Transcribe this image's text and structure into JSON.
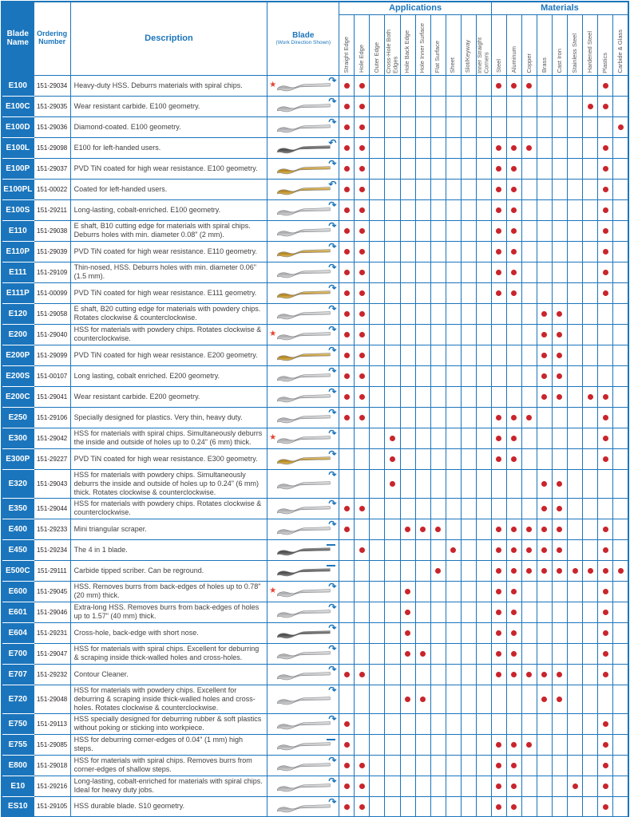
{
  "colors": {
    "blue": "#1b75bc",
    "dot_red": "#c9252c",
    "star_red": "#e8412f",
    "text_dark": "#414042",
    "label_gray": "#58595b"
  },
  "icons": {
    "star": "★",
    "arrow_cw": "↷",
    "arrow_ccw": "↶"
  },
  "header": {
    "blade_name": "Blade Name",
    "ordering_number": "Ordering Number",
    "description": "Description",
    "blade": "Blade",
    "blade_sub": "(Work Direction Shown)",
    "applications": "Applications",
    "materials": "Materials",
    "application_columns": [
      "Straight Edge",
      "Hole Edge",
      "Outer Edge",
      "Cross-Hole Both Edges",
      "Hole Back Edge",
      "Hole Inner Surface",
      "Flat Surface",
      "Sheet",
      "Slot/Keyway",
      "Inner Straight Corners"
    ],
    "material_columns": [
      "Steel",
      "Aluminum",
      "Copper",
      "Brass",
      "Cast Iron",
      "Stainless Steel",
      "Hardened Steel",
      "Plastics",
      "Carbide & Glass"
    ]
  },
  "rows": [
    {
      "name": "E100",
      "order": "151-29034",
      "description": "Heavy-duty HSS. Deburrs materials with spiral chips.",
      "blade": "silver",
      "star": true,
      "dir": "cw",
      "apps": [
        0,
        1
      ],
      "mats": [
        0,
        1,
        2,
        7
      ]
    },
    {
      "name": "E100C",
      "order": "151-29035",
      "description": "Wear resistant carbide. E100 geometry.",
      "blade": "silver",
      "star": false,
      "dir": "cw",
      "apps": [
        0,
        1
      ],
      "mats": [
        6,
        7
      ]
    },
    {
      "name": "E100D",
      "order": "151-29036",
      "description": "Diamond-coated. E100 geometry.",
      "blade": "silver",
      "star": false,
      "dir": "cw",
      "apps": [
        0,
        1
      ],
      "mats": [
        8
      ]
    },
    {
      "name": "E100L",
      "order": "151-29098",
      "description": "E100 for left-handed users.",
      "blade": "dark",
      "star": false,
      "dir": "ccw",
      "apps": [
        0,
        1
      ],
      "mats": [
        0,
        1,
        2,
        7
      ]
    },
    {
      "name": "E100P",
      "order": "151-29037",
      "description": "PVD TiN coated for high wear resistance. E100 geometry.",
      "blade": "gold",
      "star": false,
      "dir": "cw",
      "apps": [
        0,
        1
      ],
      "mats": [
        0,
        1,
        7
      ]
    },
    {
      "name": "E100PL",
      "order": "151-00022",
      "description": "Coated for left-handed users.",
      "blade": "gold",
      "star": false,
      "dir": "ccw",
      "apps": [
        0,
        1
      ],
      "mats": [
        0,
        1,
        7
      ]
    },
    {
      "name": "E100S",
      "order": "151-29211",
      "description": "Long-lasting, cobalt-enriched. E100 geometry.",
      "blade": "silver",
      "star": false,
      "dir": "cw",
      "apps": [
        0,
        1
      ],
      "mats": [
        0,
        1,
        7
      ]
    },
    {
      "name": "E110",
      "order": "151-29038",
      "description": "E shaft, B10 cutting edge for materials with spiral chips. Deburrs holes with min. diameter 0.08\" (2 mm).",
      "blade": "silver",
      "star": false,
      "dir": "cw",
      "apps": [
        0,
        1
      ],
      "mats": [
        0,
        1,
        7
      ]
    },
    {
      "name": "E110P",
      "order": "151-29039",
      "description": "PVD TiN coated for high wear resistance. E110 geometry.",
      "blade": "gold",
      "star": false,
      "dir": "cw",
      "apps": [
        0,
        1
      ],
      "mats": [
        0,
        1,
        7
      ]
    },
    {
      "name": "E111",
      "order": "151-29109",
      "description": "Thin-nosed, HSS. Deburrs holes with min. diameter 0.06\" (1.5 mm).",
      "blade": "silver",
      "star": false,
      "dir": "cw",
      "apps": [
        0,
        1
      ],
      "mats": [
        0,
        1,
        7
      ]
    },
    {
      "name": "E111P",
      "order": "151-00099",
      "description": "PVD TiN coated for high wear resistance. E111 geometry.",
      "blade": "gold",
      "star": false,
      "dir": "cw",
      "apps": [
        0,
        1
      ],
      "mats": [
        0,
        1,
        7
      ]
    },
    {
      "name": "E120",
      "order": "151-29058",
      "description": "E shaft, B20 cutting edge for materials with powdery chips. Rotates clockwise & counterclockwise.",
      "blade": "silver",
      "star": false,
      "dir": "cw",
      "apps": [
        0,
        1
      ],
      "mats": [
        3,
        4
      ]
    },
    {
      "name": "E200",
      "order": "151-29040",
      "description": "HSS for materials with powdery chips. Rotates clockwise & counterclockwise.",
      "blade": "silver",
      "star": true,
      "dir": "cw",
      "apps": [
        0,
        1
      ],
      "mats": [
        3,
        4
      ]
    },
    {
      "name": "E200P",
      "order": "151-29099",
      "description": "PVD TiN coated for high wear resistance. E200 geometry.",
      "blade": "gold",
      "star": false,
      "dir": "cw",
      "apps": [
        0,
        1
      ],
      "mats": [
        3,
        4
      ]
    },
    {
      "name": "E200S",
      "order": "151-00107",
      "description": "Long lasting, cobalt enriched. E200 geometry.",
      "blade": "silver",
      "star": false,
      "dir": "cw",
      "apps": [
        0,
        1
      ],
      "mats": [
        3,
        4
      ]
    },
    {
      "name": "E200C",
      "order": "151-29041",
      "description": "Wear resistant carbide. E200 geometry.",
      "blade": "silver",
      "star": false,
      "dir": "cw",
      "apps": [
        0,
        1
      ],
      "mats": [
        3,
        4,
        6,
        7
      ]
    },
    {
      "name": "E250",
      "order": "151-29106",
      "description": "Specially designed for plastics. Very thin, heavy duty.",
      "blade": "silver",
      "star": false,
      "dir": "cw",
      "apps": [
        0,
        1
      ],
      "mats": [
        0,
        1,
        2,
        7
      ]
    },
    {
      "name": "E300",
      "order": "151-29042",
      "description": "HSS for materials with spiral chips. Simultaneously deburrs the inside and outside of holes up to 0.24\" (6 mm) thick.",
      "blade": "silver",
      "star": true,
      "dir": "cw",
      "apps": [
        3
      ],
      "mats": [
        0,
        1,
        7
      ]
    },
    {
      "name": "E300P",
      "order": "151-29227",
      "description": "PVD TiN coated for high wear resistance. E300 geometry.",
      "blade": "gold",
      "star": false,
      "dir": "cw",
      "apps": [
        3
      ],
      "mats": [
        0,
        1,
        7
      ]
    },
    {
      "name": "E320",
      "order": "151-29043",
      "description": "HSS for materials with powdery chips. Simultaneously deburrs the inside and outside of holes up to 0.24\" (6 mm) thick. Rotates clockwise & counterclockwise.",
      "blade": "silver",
      "star": false,
      "dir": "cw",
      "apps": [
        3
      ],
      "mats": [
        3,
        4
      ]
    },
    {
      "name": "E350",
      "order": "151-29044",
      "description": "HSS for materials with powdery chips. Rotates clockwise & counterclockwise.",
      "blade": "silver",
      "star": false,
      "dir": "cw",
      "apps": [
        0,
        1
      ],
      "mats": [
        3,
        4
      ]
    },
    {
      "name": "E400",
      "order": "151-29233",
      "description": "Mini triangular scraper.",
      "blade": "silver",
      "star": false,
      "dir": "cw",
      "apps": [
        0,
        4,
        5,
        6
      ],
      "mats": [
        0,
        1,
        2,
        3,
        4,
        7
      ]
    },
    {
      "name": "E450",
      "order": "151-29234",
      "description": "The 4 in 1 blade.",
      "blade": "dark",
      "star": false,
      "dir": "dash",
      "apps": [
        1,
        7
      ],
      "mats": [
        0,
        1,
        2,
        3,
        4,
        7
      ]
    },
    {
      "name": "E500C",
      "order": "151-29111",
      "description": "Carbide tipped scriber. Can be reground.",
      "blade": "dark",
      "star": false,
      "dir": "dash",
      "apps": [
        6
      ],
      "mats": [
        0,
        1,
        2,
        3,
        4,
        5,
        6,
        7,
        8
      ]
    },
    {
      "name": "E600",
      "order": "151-29045",
      "description": "HSS. Removes burrs from back-edges of holes up to 0.78\" (20 mm) thick.",
      "blade": "silver",
      "star": true,
      "dir": "cw",
      "apps": [
        4
      ],
      "mats": [
        0,
        1,
        7
      ]
    },
    {
      "name": "E601",
      "order": "151-29046",
      "description": "Extra-long HSS. Removes burrs from back-edges of holes up to 1.57\" (40 mm) thick.",
      "blade": "silver",
      "star": false,
      "dir": "cw",
      "apps": [
        4
      ],
      "mats": [
        0,
        1,
        7
      ]
    },
    {
      "name": "E604",
      "order": "151-29231",
      "description": "Cross-hole, back-edge with short nose.",
      "blade": "dark",
      "star": false,
      "dir": "cw",
      "apps": [
        4
      ],
      "mats": [
        0,
        1,
        7
      ]
    },
    {
      "name": "E700",
      "order": "151-29047",
      "description": "HSS for materials with spiral chips. Excellent for deburring & scraping inside thick-walled holes and cross-holes.",
      "blade": "silver",
      "star": false,
      "dir": "cw",
      "apps": [
        4,
        5
      ],
      "mats": [
        0,
        1,
        7
      ]
    },
    {
      "name": "E707",
      "order": "151-29232",
      "description": "Contour Cleaner.",
      "blade": "silver",
      "star": false,
      "dir": "cw",
      "apps": [
        0,
        1
      ],
      "mats": [
        0,
        1,
        2,
        3,
        4,
        7
      ]
    },
    {
      "name": "E720",
      "order": "151-29048",
      "description": "HSS for materials with powdery chips. Excellent for deburring & scraping inside thick-walled holes and cross-holes. Rotates clockwise & counterclockwise.",
      "blade": "silver",
      "star": false,
      "dir": "cw",
      "apps": [
        4,
        5
      ],
      "mats": [
        3,
        4
      ]
    },
    {
      "name": "E750",
      "order": "151-29113",
      "description": "HSS specially designed for deburring rubber & soft plastics without poking or sticking into workpiece.",
      "blade": "silver",
      "star": false,
      "dir": "cw",
      "apps": [
        0
      ],
      "mats": [
        7
      ]
    },
    {
      "name": "E755",
      "order": "151-29085",
      "description": "HSS for deburring corner-edges of 0.04\" (1 mm) high steps.",
      "blade": "silver",
      "star": false,
      "dir": "dash",
      "apps": [
        0
      ],
      "mats": [
        0,
        1,
        2,
        7
      ]
    },
    {
      "name": "E800",
      "order": "151-29018",
      "description": "HSS for materials with spiral chips. Removes burrs from corner-edges of shallow steps.",
      "blade": "silver",
      "star": false,
      "dir": "cw",
      "apps": [
        0,
        1
      ],
      "mats": [
        0,
        1,
        7
      ]
    },
    {
      "name": "E10",
      "order": "151-29216",
      "description": "Long-lasting, cobalt-enriched for materials with spiral chips. Ideal for heavy duty jobs.",
      "blade": "silver",
      "star": false,
      "dir": "cw",
      "apps": [
        0,
        1
      ],
      "mats": [
        0,
        1,
        5,
        7
      ]
    },
    {
      "name": "ES10",
      "order": "151-29105",
      "description": "HSS durable blade. S10 geometry.",
      "blade": "silver",
      "star": false,
      "dir": "cw",
      "apps": [
        0,
        1
      ],
      "mats": [
        0,
        1,
        7
      ]
    }
  ]
}
